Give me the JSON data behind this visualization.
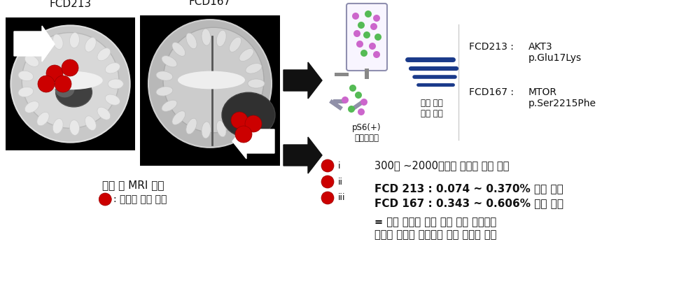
{
  "bg_color": "#ffffff",
  "fig_width": 10.0,
  "fig_height": 4.19,
  "dpi": 100,
  "labels_fcd213": "FCD213",
  "labels_fcd167": "FCD167",
  "caption_mri": "수술 후 MRI 사진",
  "caption_gene": ": 유전자 분석 부위",
  "label_ps6": "pS6(+)\n유세포분리",
  "label_panel": "패널 분석\n변이 검출",
  "label_fcd213_left": "FCD213 :",
  "label_fcd213_right": "AKT3\np.Glu17Lys",
  "label_fcd167_left": "FCD167 :",
  "label_fcd167_right": "MTOR\np.Ser2215Phe",
  "bullet_i": "i",
  "bullet_ii": "ii",
  "bullet_iii": "iii",
  "text_i": "300만 ~2000만개의 유전자 리드 분석",
  "text_ii_bold": "FCD 213 : 0.074 ~ 0.370% 변이 존재",
  "text_iii_bold": "FCD 167 : 0.343 ~ 0.606% 변이 존재",
  "text_conclusion_1": "= 발작 원인이 되는 수술 절제 부위에서",
  "text_conclusion_2": "발작의 원인이 국미량의 변이 때문임 증명",
  "red_color": "#cc0000",
  "arrow_color": "#111111",
  "text_color": "#111111",
  "blue_line_color": "#1a3a8a",
  "gray_tube": "#b0a8c0",
  "purple_dot": "#cc66cc",
  "green_dot": "#55bb55"
}
